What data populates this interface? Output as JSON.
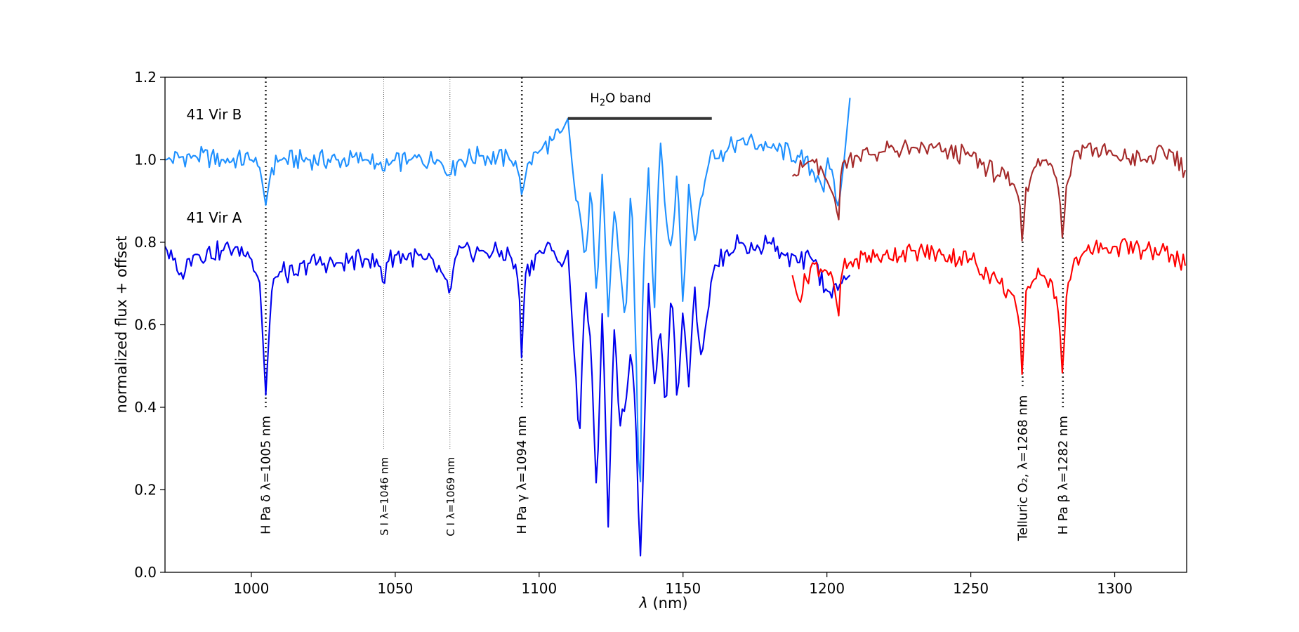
{
  "chart_data": {
    "type": "line",
    "xlabel_symbol": "λ",
    "xlabel_unit": "(nm)",
    "ylabel": "normalized flux + offset",
    "xlim": [
      970,
      1325
    ],
    "ylim": [
      0.0,
      1.2
    ],
    "xticks": [
      "1000",
      "1050",
      "1100",
      "1150",
      "1200",
      "1250",
      "1300"
    ],
    "xtick_values": [
      1000,
      1050,
      1100,
      1150,
      1200,
      1250,
      1300
    ],
    "yticks": [
      "0.0",
      "0.2",
      "0.4",
      "0.6",
      "0.8",
      "1.0",
      "1.2"
    ],
    "ytick_values": [
      0.0,
      0.2,
      0.4,
      0.6,
      0.8,
      1.0,
      1.2
    ],
    "grid": false,
    "star_labels": [
      {
        "text": "41 Vir B",
        "x": 975,
        "y": 1.11
      },
      {
        "text": "41 Vir A",
        "x": 975,
        "y": 0.86
      }
    ],
    "band": {
      "prefix": "H",
      "sub": "2",
      "suffix": "O band",
      "x_start": 1110,
      "x_end": 1160,
      "y": 1.1,
      "label_x": 1125,
      "label_y": 1.15,
      "color": "#333333"
    },
    "line_markers": [
      {
        "text": "H Pa δ λ=1005 nm",
        "wavelength": 1005,
        "y_top": 1.2,
        "y_bottom": 0.4,
        "style": "bold"
      },
      {
        "text": "S I λ=1046 nm",
        "wavelength": 1046,
        "y_top": 1.2,
        "y_bottom": 0.3,
        "style": "thin"
      },
      {
        "text": "C I λ=1069 nm",
        "wavelength": 1069,
        "y_top": 1.2,
        "y_bottom": 0.3,
        "style": "thin"
      },
      {
        "text": "H Pa γ λ=1094 nm",
        "wavelength": 1094,
        "y_top": 1.2,
        "y_bottom": 0.4,
        "style": "bold"
      },
      {
        "text": "Telluric O₂, λ=1268 nm",
        "wavelength": 1268,
        "y_top": 1.2,
        "y_bottom": 0.45,
        "style": "bold"
      },
      {
        "text": "H Pa β λ=1282 nm",
        "wavelength": 1282,
        "y_top": 1.2,
        "y_bottom": 0.4,
        "style": "bold"
      }
    ],
    "series": [
      {
        "star": "41 Vir B",
        "band": "YJ-short",
        "color": "#1e90ff",
        "x": [
          970,
          980,
          990,
          1000,
          1003,
          1005,
          1007,
          1010,
          1020,
          1030,
          1040,
          1044,
          1046,
          1048,
          1055,
          1065,
          1069,
          1072,
          1080,
          1090,
          1093,
          1094,
          1096,
          1100,
          1105,
          1108,
          1110,
          1112,
          1114,
          1116,
          1118,
          1120,
          1122,
          1124,
          1126,
          1128,
          1130,
          1132,
          1134,
          1135,
          1136,
          1138,
          1140,
          1142,
          1144,
          1146,
          1148,
          1150,
          1152,
          1154,
          1156,
          1158,
          1160,
          1162,
          1165,
          1170,
          1180,
          1190,
          1197,
          1199,
          1200,
          1202,
          1204,
          1206,
          1208
        ],
        "y": [
          1.0,
          1.01,
          1.0,
          1.0,
          0.98,
          0.89,
          0.98,
          1.0,
          1.0,
          1.0,
          1.0,
          0.99,
          0.97,
          0.99,
          1.0,
          1.0,
          0.96,
          1.0,
          1.01,
          1.0,
          0.97,
          0.91,
          0.99,
          1.02,
          1.05,
          1.07,
          1.1,
          0.95,
          0.88,
          0.75,
          0.95,
          0.66,
          0.98,
          0.62,
          0.88,
          0.75,
          0.6,
          0.96,
          0.45,
          0.1,
          0.7,
          0.98,
          0.62,
          1.06,
          0.86,
          0.78,
          0.98,
          0.64,
          0.94,
          0.8,
          0.9,
          0.96,
          1.03,
          1.0,
          1.02,
          1.05,
          1.03,
          1.01,
          0.96,
          0.92,
          1.01,
          0.97,
          0.88,
          1.0,
          1.15
        ]
      },
      {
        "star": "41 Vir B",
        "band": "J",
        "color": "#a52a2a",
        "x": [
          1188,
          1195,
          1200,
          1203,
          1204,
          1205,
          1210,
          1220,
          1230,
          1240,
          1250,
          1260,
          1265,
          1267,
          1268,
          1269,
          1272,
          1275,
          1278,
          1280,
          1281,
          1282,
          1283,
          1286,
          1290,
          1300,
          1310,
          1320,
          1325
        ],
        "y": [
          0.96,
          1.0,
          0.95,
          0.9,
          0.84,
          0.99,
          1.01,
          1.02,
          1.03,
          1.02,
          1.01,
          0.96,
          0.94,
          0.9,
          0.78,
          0.93,
          0.98,
          1.0,
          0.99,
          0.95,
          0.9,
          0.79,
          0.93,
          1.02,
          1.03,
          1.01,
          1.0,
          1.02,
          0.97
        ]
      },
      {
        "star": "41 Vir A",
        "band": "YJ-short",
        "color": "#0000ee",
        "x": [
          970,
          975,
          980,
          990,
          995,
          1000,
          1003,
          1005,
          1007,
          1010,
          1015,
          1020,
          1030,
          1040,
          1045,
          1046,
          1047,
          1050,
          1060,
          1067,
          1069,
          1071,
          1080,
          1090,
          1093,
          1094,
          1095,
          1100,
          1105,
          1108,
          1110,
          1112,
          1114,
          1116,
          1118,
          1120,
          1122,
          1124,
          1126,
          1128,
          1130,
          1132,
          1134,
          1135,
          1136,
          1138,
          1140,
          1142,
          1144,
          1146,
          1148,
          1150,
          1152,
          1154,
          1156,
          1158,
          1160,
          1165,
          1170,
          1175,
          1180,
          1185,
          1190,
          1195,
          1200,
          1205,
          1208
        ],
        "y": [
          0.79,
          0.72,
          0.77,
          0.78,
          0.79,
          0.76,
          0.7,
          0.43,
          0.68,
          0.73,
          0.72,
          0.75,
          0.75,
          0.76,
          0.74,
          0.68,
          0.75,
          0.77,
          0.76,
          0.72,
          0.67,
          0.77,
          0.78,
          0.77,
          0.7,
          0.5,
          0.72,
          0.78,
          0.78,
          0.74,
          0.78,
          0.55,
          0.31,
          0.7,
          0.55,
          0.18,
          0.65,
          0.11,
          0.6,
          0.35,
          0.4,
          0.55,
          0.3,
          0.0,
          0.2,
          0.7,
          0.45,
          0.6,
          0.38,
          0.7,
          0.4,
          0.64,
          0.45,
          0.7,
          0.52,
          0.6,
          0.72,
          0.78,
          0.8,
          0.78,
          0.8,
          0.77,
          0.75,
          0.76,
          0.68,
          0.7,
          0.72
        ]
      },
      {
        "star": "41 Vir A",
        "band": "J",
        "color": "#ff0000",
        "x": [
          1188,
          1190,
          1195,
          1200,
          1203,
          1204,
          1205,
          1210,
          1220,
          1230,
          1240,
          1250,
          1260,
          1265,
          1267,
          1268,
          1269,
          1272,
          1275,
          1278,
          1280,
          1281,
          1282,
          1283,
          1286,
          1290,
          1300,
          1310,
          1320,
          1325
        ],
        "y": [
          0.72,
          0.66,
          0.75,
          0.73,
          0.68,
          0.61,
          0.73,
          0.76,
          0.77,
          0.78,
          0.77,
          0.76,
          0.7,
          0.67,
          0.6,
          0.45,
          0.68,
          0.71,
          0.72,
          0.71,
          0.66,
          0.58,
          0.46,
          0.66,
          0.76,
          0.78,
          0.79,
          0.78,
          0.77,
          0.74
        ]
      }
    ]
  }
}
